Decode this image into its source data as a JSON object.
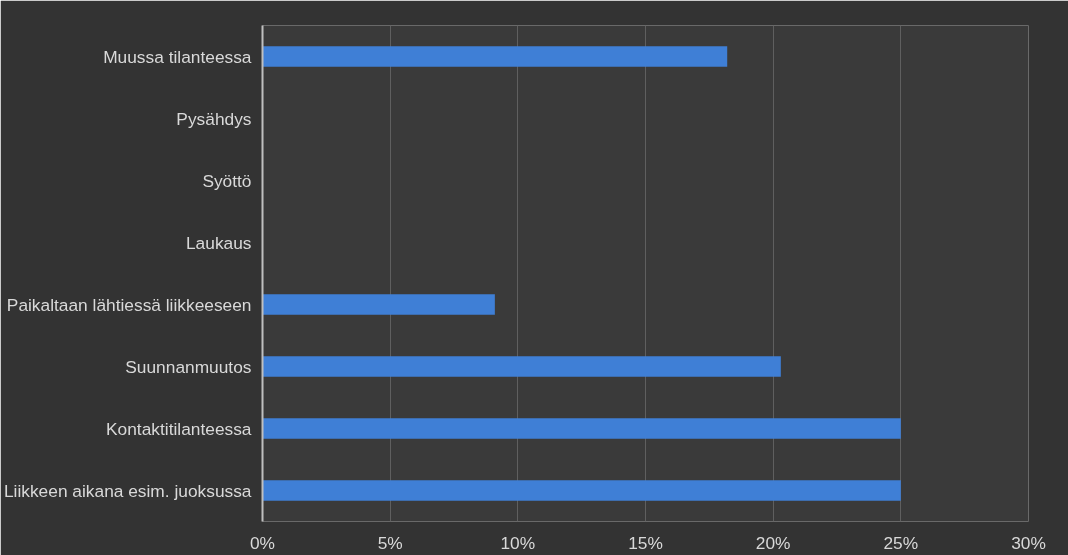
{
  "chart_data": {
    "type": "bar",
    "orientation": "horizontal",
    "categories": [
      "Muussa tilanteessa",
      "Pysähdys",
      "Syöttö",
      "Laukaus",
      "Paikaltaan lähtiessä liikkeeseen",
      "Suunnanmuutos",
      "Kontaktitilanteessa",
      "Liikkeen aikana esim. juoksussa"
    ],
    "values": [
      18.2,
      0,
      0,
      0,
      9.1,
      20.3,
      25,
      25
    ],
    "color": "#3f7fd6",
    "xlim": [
      0,
      30
    ],
    "xticks": [
      {
        "value": 0,
        "label": "0%"
      },
      {
        "value": 5,
        "label": "5%"
      },
      {
        "value": 10,
        "label": "10%"
      },
      {
        "value": 15,
        "label": "15%"
      },
      {
        "value": 20,
        "label": "20%"
      },
      {
        "value": 25,
        "label": "25%"
      },
      {
        "value": 30,
        "label": "30%"
      }
    ],
    "grid": "x"
  }
}
